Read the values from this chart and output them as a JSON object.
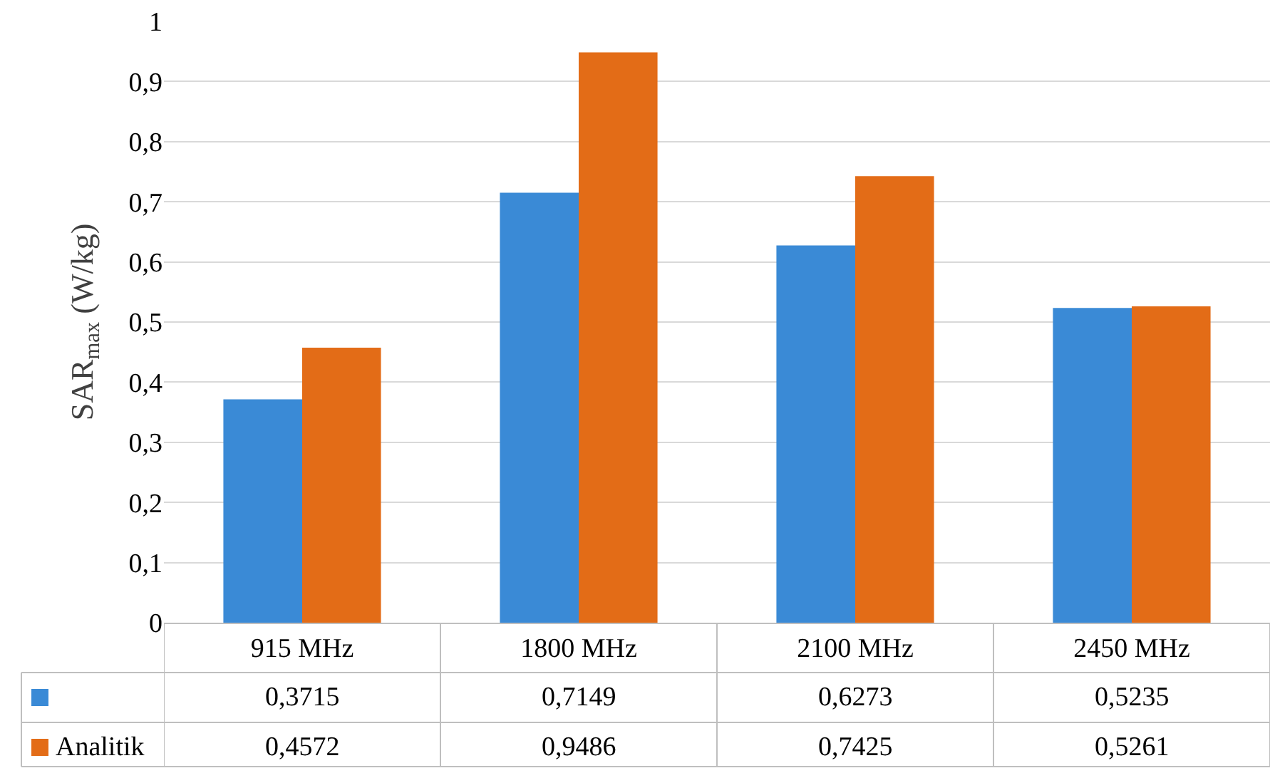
{
  "chart_data": {
    "type": "bar",
    "ylabel": "SAR$_{max}$ (W/kg)",
    "categories": [
      "915 MHz",
      "1800 MHz",
      "2100 MHz",
      "2450 MHz"
    ],
    "series": [
      {
        "color": "#3a8ad6",
        "values": [
          0.3715,
          0.7149,
          0.6273,
          0.5235
        ],
        "value_labels": [
          "0,3715",
          "0,7149",
          "0,6273",
          "0,5235"
        ]
      },
      {
        "name": "Analitik",
        "color": "#e36c17",
        "values": [
          0.4572,
          0.9486,
          0.7425,
          0.5261
        ],
        "value_labels": [
          "0,4572",
          "0,9486",
          "0,7425",
          "0,5261"
        ]
      }
    ],
    "ylim": [
      0,
      1
    ],
    "yticks": [
      {
        "value": 0,
        "label": "0"
      },
      {
        "value": 0.1,
        "label": "0,1"
      },
      {
        "value": 0.2,
        "label": "0,2"
      },
      {
        "value": 0.3,
        "label": "0,3"
      },
      {
        "value": 0.4,
        "label": "0,4"
      },
      {
        "value": 0.5,
        "label": "0,5"
      },
      {
        "value": 0.6,
        "label": "0,6"
      },
      {
        "value": 0.7,
        "label": "0,7"
      },
      {
        "value": 0.8,
        "label": "0,8"
      },
      {
        "value": 0.9,
        "label": "0,9"
      },
      {
        "value": 1,
        "label": "1"
      }
    ],
    "grid": "y",
    "legend": "bottom"
  }
}
